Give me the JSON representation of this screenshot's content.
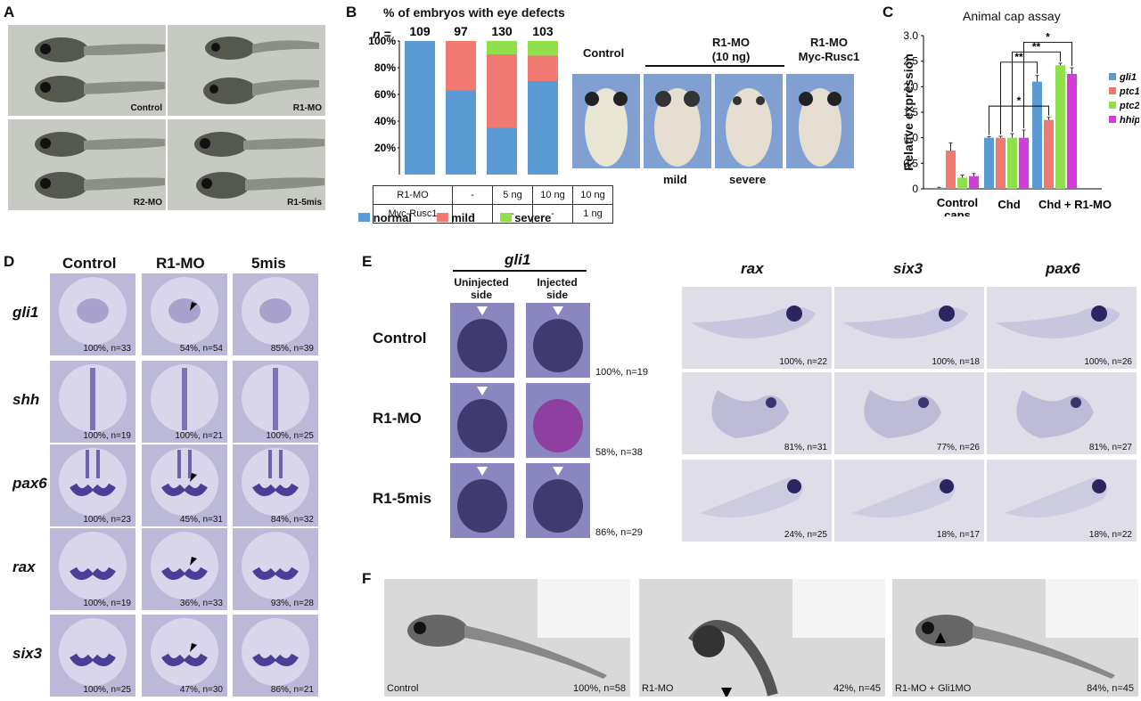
{
  "panel_labels": {
    "a": "A",
    "b": "B",
    "c": "C",
    "d": "D",
    "e": "E",
    "f": "F"
  },
  "panelA": {
    "captions": [
      "Control",
      "R1-MO",
      "R2-MO",
      "R1-5mis"
    ]
  },
  "panelB": {
    "chart_title": "% of embryos with eye defects",
    "n_label": "n =",
    "n_values": [
      "109",
      "97",
      "130",
      "103"
    ],
    "y_ticks": [
      "100%",
      "80%",
      "60%",
      "40%",
      "20%"
    ],
    "table": {
      "row1_label": "R1-MO",
      "row1": [
        "-",
        "5 ng",
        "10 ng",
        "10 ng"
      ],
      "row2_label": "Myc-Rusc1",
      "row2": [
        "-",
        "-",
        "-",
        "1 ng"
      ]
    },
    "legend": [
      "normal",
      "mild",
      "severe"
    ],
    "photo_headers": {
      "control": "Control",
      "r1mo": "R1-MO",
      "r1mo_dose": "(10 ng)",
      "rescue": "R1-MO",
      "rescue_sub": "Myc-Rusc1"
    },
    "photo_captions": {
      "mild": "mild",
      "severe": "severe"
    }
  },
  "panelC": {
    "title": "Animal cap assay",
    "ylabel": "Relative expression",
    "y_ticks": [
      "3.0",
      "2.5",
      "2.0",
      "1.5",
      "1.0",
      "0.5",
      "0"
    ],
    "x_labels": [
      "Control",
      "caps",
      "Chd",
      "Chd + R1-MO"
    ],
    "legend": [
      "gli1",
      "ptc1",
      "ptc2",
      "hhip"
    ],
    "sig": [
      "*",
      "**",
      "**",
      "*"
    ]
  },
  "panelD": {
    "col_headers": [
      "Control",
      "R1-MO",
      "5mis"
    ],
    "row_labels": [
      "gli1",
      "shh",
      "pax6",
      "rax",
      "six3"
    ],
    "captions": [
      [
        "100%, n=33",
        "54%, n=54",
        "85%, n=39"
      ],
      [
        "100%, n=19",
        "100%, n=21",
        "100%, n=25"
      ],
      [
        "100%, n=23",
        "45%, n=31",
        "84%, n=32"
      ],
      [
        "100%, n=19",
        "36%, n=33",
        "93%, n=28"
      ],
      [
        "100%, n=25",
        "47%, n=30",
        "86%, n=21"
      ]
    ]
  },
  "panelE": {
    "gene": "gli1",
    "col_headers": [
      "Uninjected",
      "side",
      "Injected",
      "side"
    ],
    "row_labels": [
      "Control",
      "R1-MO",
      "R1-5mis"
    ],
    "row_captions": [
      "100%, n=19",
      "58%, n=38",
      "86%, n=29"
    ],
    "gene_headers": [
      "rax",
      "six3",
      "pax6"
    ],
    "grid_captions": [
      [
        "100%, n=22",
        "100%, n=18",
        "100%, n=26"
      ],
      [
        "81%, n=31",
        "77%, n=26",
        "81%, n=27"
      ],
      [
        "24%, n=25",
        "18%, n=17",
        "18%, n=22"
      ]
    ]
  },
  "panelF": {
    "labels": [
      "Control",
      "R1-MO",
      "R1-MO + Gli1MO"
    ],
    "captions": [
      "100%, n=58",
      "42%, n=45",
      "84%, n=45"
    ]
  },
  "colors": {
    "normal": "#5b9bd5",
    "mild": "#f07a72",
    "severe": "#8fe04a",
    "gli1": "#5b9bd5",
    "ptc1": "#f07a72",
    "ptc2": "#8fe04a",
    "hhip": "#d23cd8",
    "photoA": "#c7cac3",
    "photoD": "#bcb8d8",
    "photoE": "#8a86c0",
    "photoF": "#d9d9d9"
  },
  "chart_data": [
    {
      "type": "bar",
      "title": "% of embryos with eye defects",
      "categories": [
        "109",
        "97",
        "130",
        "103"
      ],
      "series": [
        {
          "name": "normal",
          "values": [
            100,
            63,
            35,
            70
          ]
        },
        {
          "name": "mild",
          "values": [
            0,
            37,
            55,
            19
          ]
        },
        {
          "name": "severe",
          "values": [
            0,
            0,
            10,
            11
          ]
        }
      ],
      "ylim": [
        0,
        100
      ],
      "stacked": true,
      "legend": "bottom"
    },
    {
      "type": "bar",
      "title": "Animal cap assay",
      "ylabel": "Relative expression",
      "categories": [
        "Control caps",
        "Chd",
        "Chd + R1-MO"
      ],
      "series": [
        {
          "name": "gli1",
          "values": [
            0.02,
            1.0,
            2.1
          ]
        },
        {
          "name": "ptc1",
          "values": [
            0.75,
            1.0,
            1.35
          ]
        },
        {
          "name": "ptc2",
          "values": [
            0.22,
            1.0,
            2.42
          ]
        },
        {
          "name": "hhip",
          "values": [
            0.25,
            1.0,
            2.25
          ]
        }
      ],
      "errors": [
        [
          0.01,
          0.15,
          0.05,
          0.05
        ],
        [
          0.02,
          0.03,
          0.08,
          0.15
        ],
        [
          0.12,
          0.05,
          0.04,
          0.12
        ]
      ],
      "ylim": [
        0,
        3.0
      ],
      "legend": "right"
    }
  ]
}
